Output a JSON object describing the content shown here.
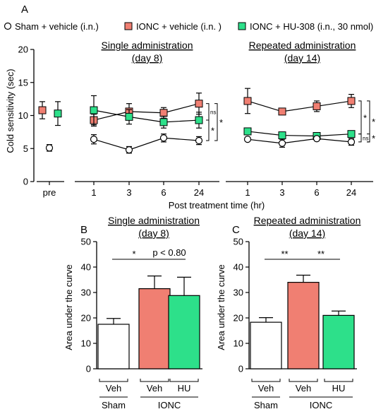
{
  "panel_labels": {
    "a": "A",
    "b": "B",
    "c": "C"
  },
  "legend": [
    {
      "label": "Sham + vehicle (i.n.)",
      "marker": "circle",
      "color": "#ffffff"
    },
    {
      "label": "IONC + vehicle (i.n. )",
      "marker": "square",
      "color": "#f07f72"
    },
    {
      "label": "IONC + HU-308 (i.n., 30 nmol)",
      "marker": "square",
      "color": "#2de08a"
    }
  ],
  "colors": {
    "sham": "#ffffff",
    "ionc_vehicle": "#f07f72",
    "ionc_hu": "#2de08a",
    "axis": "#000000"
  },
  "chart_data": [
    {
      "type": "line",
      "panel": "A",
      "ylabel": "Cold sensitivity (sec)",
      "xlabel": "Post treatment time (hr)",
      "ylim": [
        0,
        20
      ],
      "yticks": [
        "0",
        "5",
        "10",
        "15",
        "20"
      ],
      "grid": false,
      "subplots": [
        {
          "name": "pre",
          "title": "",
          "x": [
            "pre"
          ],
          "series": [
            {
              "name": "IONC + vehicle (i.n. )",
              "values": [
                10.8
              ],
              "err": [
                1.3
              ]
            },
            {
              "name": "IONC + HU-308 (i.n., 30 nmol)",
              "values": [
                10.3
              ],
              "err": [
                1.8
              ]
            },
            {
              "name": "Sham + vehicle (i.n.)",
              "values": [
                5.1
              ],
              "err": [
                0.5
              ]
            }
          ]
        },
        {
          "name": "single",
          "title": [
            "Single administration",
            "(day 8)"
          ],
          "x": [
            "1",
            "3",
            "6",
            "24"
          ],
          "series": [
            {
              "name": "IONC + vehicle (i.n. )",
              "values": [
                9.3,
                10.6,
                10.4,
                11.8
              ],
              "err": [
                0.9,
                1.2,
                0.8,
                1.6
              ]
            },
            {
              "name": "IONC + HU-308 (i.n., 30 nmol)",
              "values": [
                10.8,
                9.8,
                9.0,
                9.3
              ],
              "err": [
                2.2,
                1.1,
                0.9,
                1.2
              ]
            },
            {
              "name": "Sham + vehicle (i.n.)",
              "values": [
                6.4,
                4.8,
                6.6,
                6.2
              ],
              "err": [
                0.7,
                0.5,
                0.6,
                0.6
              ]
            }
          ],
          "significance": [
            {
              "text": "ns",
              "from": 11.8,
              "to": 9.3
            },
            {
              "text": "*",
              "from": 11.8,
              "to": 6.2,
              "outer": true
            },
            {
              "text": "*",
              "from": 9.3,
              "to": 6.2
            }
          ]
        },
        {
          "name": "repeated",
          "title": [
            "Repeated administration",
            "(day 14)"
          ],
          "x": [
            "1",
            "3",
            "6",
            "24"
          ],
          "series": [
            {
              "name": "IONC + vehicle (i.n. )",
              "values": [
                12.2,
                10.6,
                11.4,
                12.2
              ],
              "err": [
                1.9,
                0.3,
                0.8,
                1.0
              ]
            },
            {
              "name": "IONC + HU-308 (i.n., 30 nmol)",
              "values": [
                7.6,
                7.0,
                6.9,
                7.2
              ],
              "err": [
                0.3,
                0.4,
                0.4,
                0.3
              ]
            },
            {
              "name": "Sham + vehicle (i.n.)",
              "values": [
                6.4,
                5.8,
                6.5,
                6.0
              ],
              "err": [
                0.2,
                0.6,
                0.3,
                0.5
              ]
            }
          ],
          "significance": [
            {
              "text": "*",
              "from": 12.2,
              "to": 7.2
            },
            {
              "text": "*",
              "from": 12.2,
              "to": 6.0,
              "outer": true
            },
            {
              "text": "*",
              "from": 7.2,
              "to": 6.0,
              "outer": true
            },
            {
              "text": "ns",
              "from": 7.2,
              "to": 6.0
            }
          ]
        }
      ]
    },
    {
      "type": "bar",
      "panel": "B",
      "title": [
        "Single administration",
        "(day 8)"
      ],
      "ylabel": "Area under the curve",
      "ylim": [
        0,
        50
      ],
      "yticks": [
        "0",
        "10",
        "20",
        "30",
        "40",
        "50"
      ],
      "categories": [
        "Veh",
        "Veh",
        "HU"
      ],
      "groups": [
        {
          "label": "Sham",
          "span": [
            0,
            0
          ]
        },
        {
          "label": "IONC",
          "span": [
            1,
            2
          ]
        }
      ],
      "values": [
        17.5,
        31.5,
        28.8
      ],
      "err": [
        2.3,
        5.0,
        7.2
      ],
      "colors": [
        "#ffffff",
        "#f07f72",
        "#2de08a"
      ],
      "significance": [
        {
          "text": "*",
          "bars": [
            0,
            1
          ],
          "level": 41
        },
        {
          "text": "p < 0.80",
          "bars": [
            1,
            2
          ],
          "level": 41
        }
      ]
    },
    {
      "type": "bar",
      "panel": "C",
      "title": [
        "Repeated administration",
        "(day 14)"
      ],
      "ylabel": "Area under the curve",
      "ylim": [
        0,
        50
      ],
      "yticks": [
        "0",
        "10",
        "20",
        "30",
        "40",
        "50"
      ],
      "categories": [
        "Veh",
        "Veh",
        "HU"
      ],
      "groups": [
        {
          "label": "Sham",
          "span": [
            0,
            0
          ]
        },
        {
          "label": "IONC",
          "span": [
            1,
            2
          ]
        }
      ],
      "values": [
        18.3,
        34.0,
        21.0
      ],
      "err": [
        1.8,
        2.8,
        1.7
      ],
      "colors": [
        "#ffffff",
        "#f07f72",
        "#2de08a"
      ],
      "significance": [
        {
          "text": "**",
          "bars": [
            0,
            1
          ],
          "level": 41
        },
        {
          "text": "**",
          "bars": [
            1,
            2
          ],
          "level": 41
        }
      ]
    }
  ]
}
